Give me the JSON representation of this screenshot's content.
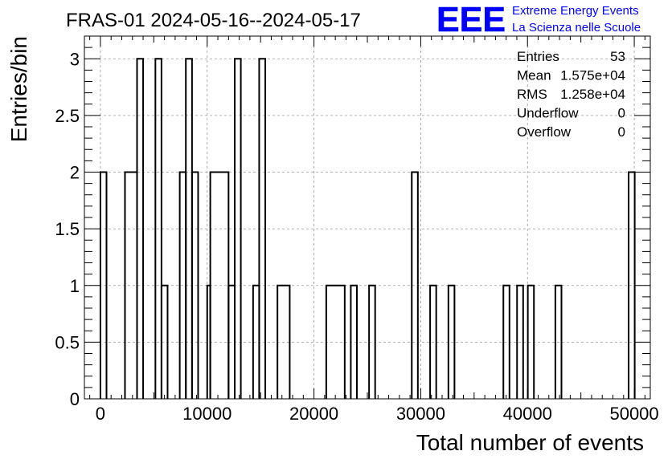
{
  "chart_data": {
    "type": "histogram",
    "title": "FRAS-01 2024-05-16--2024-05-17",
    "xlabel": "Total number of events",
    "ylabel": "Entries/bin",
    "xlim": [
      -1500,
      51500
    ],
    "ylim": [
      0,
      3.2
    ],
    "x_ticks": [
      0,
      10000,
      20000,
      30000,
      40000,
      50000
    ],
    "x_tick_labels": [
      "0",
      "10000",
      "20000",
      "30000",
      "40000",
      "50000"
    ],
    "y_ticks": [
      0,
      0.5,
      1,
      1.5,
      2,
      2.5,
      3
    ],
    "y_tick_labels": [
      "0",
      "0.5",
      "1",
      "1.5",
      "2",
      "2.5",
      "3"
    ],
    "grid": true,
    "bins": [
      {
        "x0": 0,
        "x1": 570,
        "value": 2
      },
      {
        "x0": 2300,
        "x1": 3430,
        "value": 2
      },
      {
        "x0": 3430,
        "x1": 4000,
        "value": 3
      },
      {
        "x0": 5150,
        "x1": 5720,
        "value": 3
      },
      {
        "x0": 5720,
        "x1": 6290,
        "value": 1
      },
      {
        "x0": 7430,
        "x1": 8000,
        "value": 2
      },
      {
        "x0": 8000,
        "x1": 8580,
        "value": 3
      },
      {
        "x0": 8580,
        "x1": 9150,
        "value": 2
      },
      {
        "x0": 10000,
        "x1": 10290,
        "value": 1
      },
      {
        "x0": 10290,
        "x1": 12000,
        "value": 2
      },
      {
        "x0": 12000,
        "x1": 12580,
        "value": 1
      },
      {
        "x0": 12580,
        "x1": 13150,
        "value": 3
      },
      {
        "x0": 14300,
        "x1": 14870,
        "value": 1
      },
      {
        "x0": 14870,
        "x1": 15440,
        "value": 3
      },
      {
        "x0": 16580,
        "x1": 17730,
        "value": 1
      },
      {
        "x0": 21150,
        "x1": 22880,
        "value": 1
      },
      {
        "x0": 23450,
        "x1": 24020,
        "value": 1
      },
      {
        "x0": 25160,
        "x1": 25730,
        "value": 1
      },
      {
        "x0": 29160,
        "x1": 29730,
        "value": 2
      },
      {
        "x0": 30880,
        "x1": 31450,
        "value": 1
      },
      {
        "x0": 32590,
        "x1": 33160,
        "value": 1
      },
      {
        "x0": 37740,
        "x1": 38310,
        "value": 1
      },
      {
        "x0": 39020,
        "x1": 39590,
        "value": 1
      },
      {
        "x0": 40030,
        "x1": 40600,
        "value": 1
      },
      {
        "x0": 42610,
        "x1": 43180,
        "value": 1
      },
      {
        "x0": 49470,
        "x1": 50040,
        "value": 2
      }
    ],
    "stats": {
      "rows": [
        {
          "label": "Entries",
          "value": "53"
        },
        {
          "label": "Mean",
          "value": "1.575e+04"
        },
        {
          "label": "RMS",
          "value": "1.258e+04"
        },
        {
          "label": "Underflow",
          "value": "0"
        },
        {
          "label": "Overflow",
          "value": "0"
        }
      ]
    }
  },
  "logo": {
    "mark": "EEE",
    "line1": "Extreme Energy Events",
    "line2": "La Scienza nelle Scuole",
    "color": "#0000ff"
  }
}
